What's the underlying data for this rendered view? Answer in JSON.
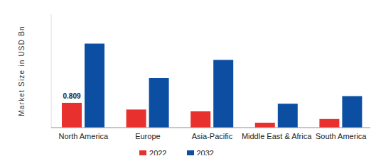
{
  "chart_data": {
    "type": "bar",
    "y_label": "Market Size in USD Bn",
    "categories": [
      "North America",
      "Europe",
      "Asia-Pacific",
      "Middle East & Africa",
      "South America"
    ],
    "series": [
      {
        "name": "2022",
        "color": "#e8312f",
        "values": [
          0.809,
          0.59,
          0.53,
          0.16,
          0.28
        ],
        "value_labels": [
          "0.809",
          null,
          null,
          null,
          null
        ]
      },
      {
        "name": "2032",
        "color": "#0b4ea2",
        "values": [
          2.74,
          1.62,
          2.21,
          0.78,
          1.03
        ]
      }
    ],
    "ylim": [
      0,
      3.7
    ],
    "yticks": [],
    "tick_labels": "x",
    "grid": false,
    "legend": "bottom"
  }
}
